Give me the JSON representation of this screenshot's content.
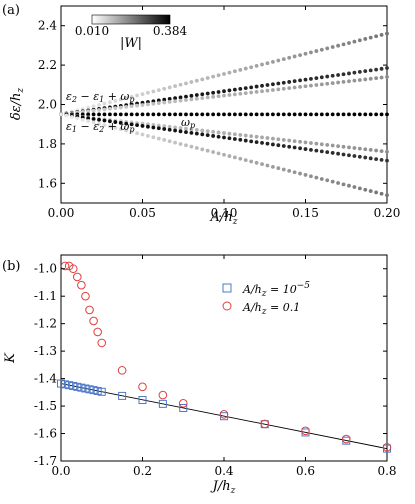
{
  "chart_data": [
    {
      "panel_label": "(a)",
      "type": "scatter",
      "xlabel": "A/h_z",
      "ylabel": "δε/h_z",
      "xlim": [
        0,
        0.2
      ],
      "ylim": [
        1.5,
        2.5
      ],
      "xticks": [
        "0.00",
        "0.05",
        "0.10",
        "0.15",
        "0.20"
      ],
      "yticks": [
        "1.6",
        "1.8",
        "2.0",
        "2.2",
        "2.4"
      ],
      "colorbar": {
        "label": "|W|",
        "min_label": "0.010",
        "max_label": "0.384",
        "min": 0.01,
        "max": 0.384
      },
      "annotations": [
        "ε2 − ε1 + ωp",
        "ε1 − ε2 + ωp",
        "ωp"
      ],
      "series": [
        {
          "x0": 0.0,
          "x1": 0.2,
          "y0": 1.95,
          "y1": 2.36,
          "w0": 0.01,
          "w1": 0.2
        },
        {
          "x0": 0.0,
          "x1": 0.2,
          "y0": 1.95,
          "y1": 2.185,
          "w0": 0.38,
          "w1": 0.3
        },
        {
          "x0": 0.0,
          "x1": 0.2,
          "y0": 1.95,
          "y1": 2.14,
          "w0": 0.05,
          "w1": 0.16
        },
        {
          "x0": 0.0,
          "x1": 0.2,
          "y0": 1.95,
          "y1": 1.95,
          "w0": 0.384,
          "w1": 0.384
        },
        {
          "x0": 0.0,
          "x1": 0.2,
          "y0": 1.95,
          "y1": 1.76,
          "w0": 0.05,
          "w1": 0.16
        },
        {
          "x0": 0.0,
          "x1": 0.2,
          "y0": 1.95,
          "y1": 1.715,
          "w0": 0.38,
          "w1": 0.3
        },
        {
          "x0": 0.0,
          "x1": 0.2,
          "y0": 1.95,
          "y1": 1.54,
          "w0": 0.01,
          "w1": 0.2
        }
      ]
    },
    {
      "panel_label": "(b)",
      "type": "scatter",
      "xlabel": "J/h_z",
      "ylabel": "K",
      "xlim": [
        0,
        0.8
      ],
      "ylim": [
        -1.7,
        -0.95
      ],
      "xticks": [
        "0.0",
        "0.2",
        "0.4",
        "0.6",
        "0.8"
      ],
      "yticks": [
        "-1.0",
        "-1.1",
        "-1.2",
        "-1.3",
        "-1.4",
        "-1.5",
        "-1.6",
        "-1.7"
      ],
      "line": {
        "x": [
          0.0,
          0.8
        ],
        "y": [
          -1.418,
          -1.655
        ]
      },
      "series": [
        {
          "name": "A/h_z = 10^-5",
          "marker": "square",
          "color": "#4d79c9",
          "x": [
            0.0,
            0.01,
            0.02,
            0.03,
            0.04,
            0.05,
            0.06,
            0.07,
            0.08,
            0.09,
            0.1,
            0.15,
            0.2,
            0.25,
            0.3,
            0.4,
            0.5,
            0.6,
            0.7,
            0.8
          ],
          "y": [
            -1.418,
            -1.421,
            -1.424,
            -1.427,
            -1.43,
            -1.433,
            -1.436,
            -1.439,
            -1.442,
            -1.445,
            -1.448,
            -1.463,
            -1.478,
            -1.492,
            -1.507,
            -1.537,
            -1.566,
            -1.596,
            -1.626,
            -1.655
          ]
        },
        {
          "name": "A/h_z = 0.1",
          "marker": "circle",
          "color": "#e04040",
          "x": [
            0.01,
            0.02,
            0.03,
            0.04,
            0.05,
            0.06,
            0.07,
            0.08,
            0.09,
            0.1,
            0.15,
            0.2,
            0.25,
            0.3,
            0.4,
            0.5,
            0.6,
            0.7,
            0.8
          ],
          "y": [
            -0.99,
            -0.99,
            -1.0,
            -1.03,
            -1.06,
            -1.1,
            -1.15,
            -1.19,
            -1.23,
            -1.27,
            -1.37,
            -1.43,
            -1.46,
            -1.49,
            -1.53,
            -1.565,
            -1.59,
            -1.62,
            -1.65
          ]
        }
      ]
    }
  ]
}
